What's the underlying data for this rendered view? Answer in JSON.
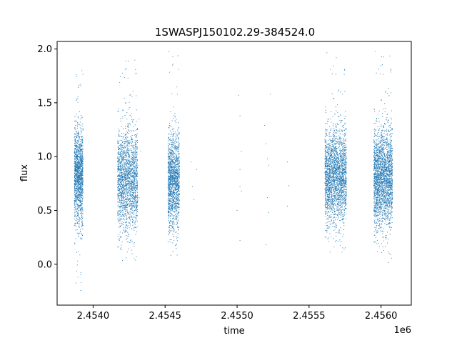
{
  "chart_data": {
    "type": "scatter",
    "title": "1SWASPJ150102.29-384524.0",
    "xlabel": "time",
    "ylabel": "flux",
    "x_offset_label": "1e6",
    "xlim": [
      2.45375,
      2.45621
    ],
    "ylim": [
      -0.38,
      2.07
    ],
    "xticks": [
      2.454,
      2.4545,
      2.455,
      2.4555,
      2.456
    ],
    "xtick_labels": [
      "2.4540",
      "2.4545",
      "2.4550",
      "2.4555",
      "2.4560"
    ],
    "yticks": [
      0.0,
      0.5,
      1.0,
      1.5,
      2.0
    ],
    "ytick_labels": [
      "0.0",
      "0.5",
      "1.0",
      "1.5",
      "2.0"
    ],
    "grid": false,
    "point_color": "#1f77b4",
    "clusters": [
      {
        "x_start": 2.45387,
        "x_end": 2.45393,
        "y_center": 0.82,
        "y_spread": 0.22,
        "y_min": -0.25,
        "y_max": 1.85,
        "count": 1400
      },
      {
        "x_start": 2.45417,
        "x_end": 2.45431,
        "y_center": 0.78,
        "y_spread": 0.24,
        "y_min": 0.0,
        "y_max": 1.94,
        "count": 1900
      },
      {
        "x_start": 2.45452,
        "x_end": 2.4546,
        "y_center": 0.78,
        "y_spread": 0.22,
        "y_min": 0.05,
        "y_max": 1.98,
        "count": 1500
      },
      {
        "x_start": 2.45561,
        "x_end": 2.45576,
        "y_center": 0.82,
        "y_spread": 0.22,
        "y_min": 0.08,
        "y_max": 1.97,
        "count": 2300
      },
      {
        "x_start": 2.45595,
        "x_end": 2.45608,
        "y_center": 0.8,
        "y_spread": 0.23,
        "y_min": -0.02,
        "y_max": 1.98,
        "count": 2300
      }
    ],
    "sparse_points": [
      [
        2.45468,
        0.95
      ],
      [
        2.45469,
        0.72
      ],
      [
        2.4547,
        0.6
      ],
      [
        2.45472,
        0.88
      ],
      [
        2.45501,
        1.57
      ],
      [
        2.45502,
        1.38
      ],
      [
        2.45502,
        0.72
      ],
      [
        2.45503,
        0.68
      ],
      [
        2.45503,
        1.05
      ],
      [
        2.45502,
        0.88
      ],
      [
        2.455,
        0.5
      ],
      [
        2.45502,
        0.22
      ],
      [
        2.45519,
        1.29
      ],
      [
        2.4552,
        1.12
      ],
      [
        2.45521,
        0.98
      ],
      [
        2.45521,
        0.62
      ],
      [
        2.45522,
        0.48
      ],
      [
        2.4552,
        0.18
      ],
      [
        2.45523,
        1.58
      ],
      [
        2.45522,
        0.92
      ],
      [
        2.45535,
        0.95
      ],
      [
        2.45536,
        0.73
      ],
      [
        2.45535,
        0.54
      ],
      [
        2.45432,
        1.35
      ],
      [
        2.45433,
        1.05
      ],
      [
        2.45432,
        0.62
      ]
    ]
  }
}
